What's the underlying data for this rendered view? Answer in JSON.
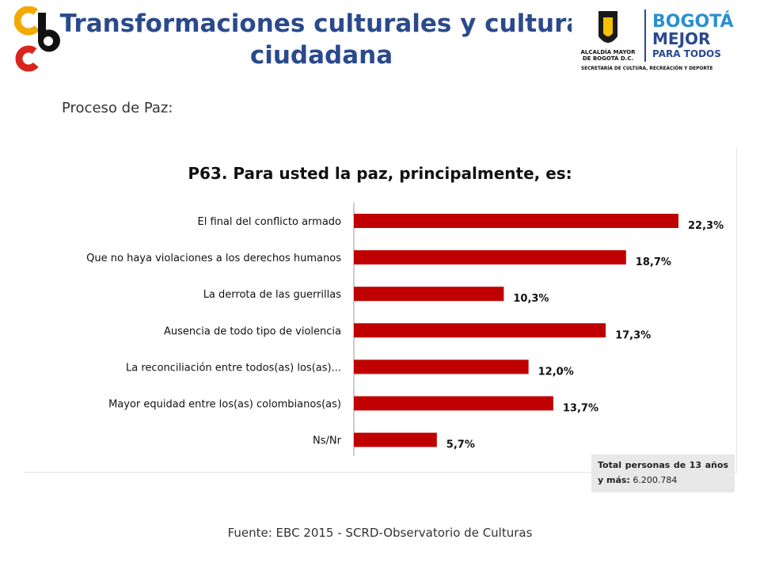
{
  "header": {
    "title": "Transformaciones culturales y cultura ciudadana",
    "logo_right": {
      "brand_line1": "BOGOTÁ",
      "brand_line2": "MEJOR",
      "brand_line3": "PARA TODOS",
      "alcaldia_line1": "ALCALDÍA MAYOR",
      "alcaldia_line2": "DE BOGOTÁ D.C.",
      "secretaria": "SECRETARÍA DE CULTURA, RECREACIÓN Y DEPORTE"
    }
  },
  "subtitle": "Proceso de Paz:",
  "chart_data": {
    "type": "bar",
    "orientation": "horizontal",
    "title": "P63. Para usted la paz, principalmente, es:",
    "categories": [
      "El final del conflicto armado",
      "Que no haya violaciones a los derechos humanos",
      "La derrota de las guerrillas",
      "Ausencia de todo tipo de violencia",
      "La reconciliación entre todos(as) los(as)...",
      "Mayor equidad entre los(as) colombianos(as)",
      "Ns/Nr"
    ],
    "values": [
      22.3,
      18.7,
      10.3,
      17.3,
      12.0,
      13.7,
      5.7
    ],
    "value_labels": [
      "22,3%",
      "18,7%",
      "10,3%",
      "17,3%",
      "12,0%",
      "13,7%",
      "5,7%"
    ],
    "bar_color": "#c00000",
    "xlim": [
      0,
      22.3
    ]
  },
  "total_box": {
    "label": "Total personas de 13 años y más:",
    "value": "6.200.784"
  },
  "source": "Fuente: EBC 2015 - SCRD-Observatorio de Culturas",
  "colors": {
    "title": "#2a4a8c",
    "bar": "#c00000",
    "logo_orange": "#f2a900",
    "logo_red": "#d9251d"
  }
}
